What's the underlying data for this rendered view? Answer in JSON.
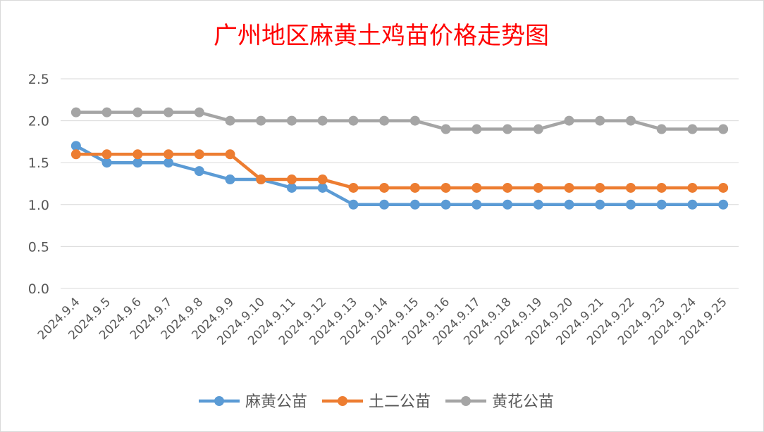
{
  "chart_data": {
    "type": "line",
    "title": "广州地区麻黄土鸡苗价格走势图",
    "categories": [
      "2024.9.4",
      "2024.9.5",
      "2024.9.6",
      "2024.9.7",
      "2024.9.8",
      "2024.9.9",
      "2024.9.10",
      "2024.9.11",
      "2024.9.12",
      "2024.9.13",
      "2024.9.14",
      "2024.9.15",
      "2024.9.16",
      "2024.9.17",
      "2024.9.18",
      "2024.9.19",
      "2024.9.20",
      "2024.9.21",
      "2024.9.22",
      "2024.9.23",
      "2024.9.24",
      "2024.9.25"
    ],
    "yticks": [
      "0.0",
      "0.5",
      "1.0",
      "1.5",
      "2.0",
      "2.5"
    ],
    "ylim": [
      0,
      2.5
    ],
    "grid": true,
    "legend_position": "bottom",
    "series": [
      {
        "name": "麻黄公苗",
        "color": "#5b9bd5",
        "values": [
          1.7,
          1.5,
          1.5,
          1.5,
          1.4,
          1.3,
          1.3,
          1.2,
          1.2,
          1.0,
          1.0,
          1.0,
          1.0,
          1.0,
          1.0,
          1.0,
          1.0,
          1.0,
          1.0,
          1.0,
          1.0,
          1.0
        ]
      },
      {
        "name": "土二公苗",
        "color": "#ed7d31",
        "values": [
          1.6,
          1.6,
          1.6,
          1.6,
          1.6,
          1.6,
          1.3,
          1.3,
          1.3,
          1.2,
          1.2,
          1.2,
          1.2,
          1.2,
          1.2,
          1.2,
          1.2,
          1.2,
          1.2,
          1.2,
          1.2,
          1.2
        ]
      },
      {
        "name": "黄花公苗",
        "color": "#a5a5a5",
        "values": [
          2.1,
          2.1,
          2.1,
          2.1,
          2.1,
          2.0,
          2.0,
          2.0,
          2.0,
          2.0,
          2.0,
          2.0,
          1.9,
          1.9,
          1.9,
          1.9,
          2.0,
          2.0,
          2.0,
          1.9,
          1.9,
          1.9
        ]
      }
    ]
  }
}
